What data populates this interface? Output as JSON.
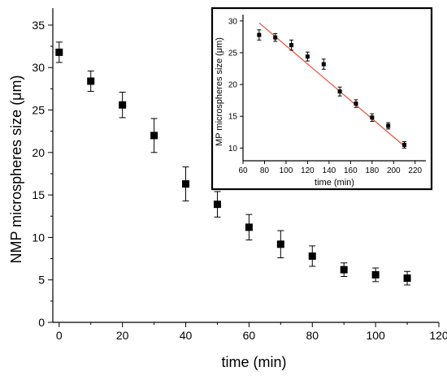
{
  "chart_data": [
    {
      "type": "scatter",
      "xlabel": "time (min)",
      "ylabel": "NMP microspheres size (μm)",
      "xlim": [
        -2,
        120
      ],
      "ylim": [
        0,
        37
      ],
      "xticks": [
        0,
        20,
        40,
        60,
        80,
        100,
        120
      ],
      "yticks": [
        0,
        5,
        10,
        15,
        20,
        25,
        30,
        35
      ],
      "grid": false,
      "series": [
        {
          "marker": "square",
          "color": "#000000",
          "x": [
            0,
            10,
            20,
            30,
            40,
            50,
            60,
            70,
            80,
            90,
            100,
            110
          ],
          "y": [
            31.8,
            28.4,
            25.6,
            22.0,
            16.3,
            13.9,
            11.2,
            9.2,
            7.8,
            6.2,
            5.6,
            5.2
          ],
          "yerr": [
            1.2,
            1.2,
            1.5,
            2.0,
            2.0,
            1.5,
            1.5,
            1.6,
            1.2,
            0.8,
            0.8,
            0.8
          ]
        }
      ]
    },
    {
      "type": "scatter",
      "placement": "top-right inset",
      "xlabel": "time (min)",
      "ylabel": "MP microspheres size (μm)",
      "xlim": [
        60,
        230
      ],
      "ylim": [
        8,
        31
      ],
      "xticks": [
        60,
        80,
        100,
        120,
        140,
        160,
        180,
        200,
        220
      ],
      "yticks": [
        10,
        15,
        20,
        25,
        30
      ],
      "grid": false,
      "series": [
        {
          "marker": "square",
          "color": "#000000",
          "x": [
            75,
            90,
            105,
            120,
            135,
            150,
            165,
            180,
            195,
            210
          ],
          "y": [
            27.8,
            27.4,
            26.2,
            24.4,
            23.2,
            18.9,
            17.0,
            14.8,
            13.5,
            10.5
          ],
          "yerr": [
            0.8,
            0.6,
            0.8,
            0.7,
            0.8,
            0.7,
            0.6,
            0.6,
            0.5,
            0.5
          ]
        }
      ],
      "fit_line": {
        "color": "#e8503a",
        "x": [
          75,
          210
        ],
        "y": [
          29.7,
          10.3
        ]
      }
    }
  ]
}
